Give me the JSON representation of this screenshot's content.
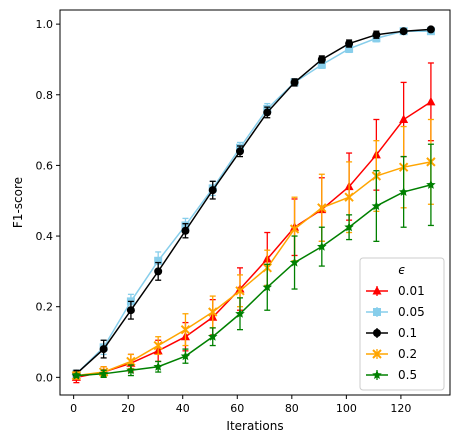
{
  "chart_data": {
    "type": "line",
    "title": "",
    "xlabel": "Iterations",
    "ylabel": "F1-score",
    "xlim": [
      -5,
      138
    ],
    "ylim": [
      -0.05,
      1.04
    ],
    "xticks": [
      0,
      20,
      40,
      60,
      80,
      100,
      120
    ],
    "yticks": [
      0.0,
      0.2,
      0.4,
      0.6,
      0.8,
      1.0
    ],
    "xtick_labels": [
      "0",
      "20",
      "40",
      "60",
      "80",
      "100",
      "120"
    ],
    "ytick_labels": [
      "0.0",
      "0.2",
      "0.4",
      "0.6",
      "0.8",
      "1.0"
    ],
    "grid": false,
    "legend": {
      "title": "ϵ",
      "placement": "lower-right"
    },
    "x": [
      1,
      11,
      21,
      31,
      41,
      51,
      61,
      71,
      81,
      91,
      101,
      111,
      121,
      131
    ],
    "series": [
      {
        "name": "0.01",
        "color": "#ff0000",
        "marker": "triangle-up",
        "values": [
          0.0,
          0.015,
          0.04,
          0.075,
          0.115,
          0.17,
          0.25,
          0.335,
          0.425,
          0.475,
          0.54,
          0.63,
          0.73,
          0.78
        ],
        "errors": [
          0.015,
          0.015,
          0.025,
          0.03,
          0.04,
          0.05,
          0.06,
          0.075,
          0.08,
          0.09,
          0.095,
          0.1,
          0.105,
          0.11
        ]
      },
      {
        "name": "0.05",
        "color": "#87ceeb",
        "marker": "square",
        "values": [
          0.01,
          0.085,
          0.215,
          0.33,
          0.43,
          0.535,
          0.65,
          0.76,
          0.835,
          0.885,
          0.93,
          0.96,
          0.98,
          0.98
        ],
        "errors": [
          0.01,
          0.02,
          0.02,
          0.025,
          0.02,
          0.02,
          0.015,
          0.015,
          0.01,
          0.01,
          0.01,
          0.01,
          0.005,
          0.005
        ]
      },
      {
        "name": "0.1",
        "color": "#000000",
        "marker": "circle",
        "values": [
          0.01,
          0.08,
          0.19,
          0.3,
          0.415,
          0.53,
          0.64,
          0.75,
          0.835,
          0.9,
          0.945,
          0.97,
          0.98,
          0.985
        ],
        "errors": [
          0.01,
          0.025,
          0.025,
          0.025,
          0.02,
          0.025,
          0.015,
          0.015,
          0.01,
          0.01,
          0.01,
          0.01,
          0.005,
          0.005
        ]
      },
      {
        "name": "0.2",
        "color": "#ffa500",
        "marker": "x",
        "values": [
          0.005,
          0.015,
          0.045,
          0.09,
          0.135,
          0.185,
          0.245,
          0.31,
          0.42,
          0.48,
          0.51,
          0.57,
          0.595,
          0.61
        ],
        "errors": [
          0.01,
          0.015,
          0.02,
          0.025,
          0.045,
          0.045,
          0.045,
          0.05,
          0.09,
          0.095,
          0.1,
          0.1,
          0.115,
          0.12
        ]
      },
      {
        "name": "0.5",
        "color": "#008000",
        "marker": "star",
        "values": [
          0.005,
          0.01,
          0.02,
          0.03,
          0.06,
          0.115,
          0.18,
          0.255,
          0.325,
          0.37,
          0.425,
          0.485,
          0.525,
          0.545
        ],
        "errors": [
          0.005,
          0.01,
          0.015,
          0.015,
          0.02,
          0.025,
          0.045,
          0.065,
          0.075,
          0.055,
          0.035,
          0.1,
          0.1,
          0.115
        ]
      }
    ]
  }
}
